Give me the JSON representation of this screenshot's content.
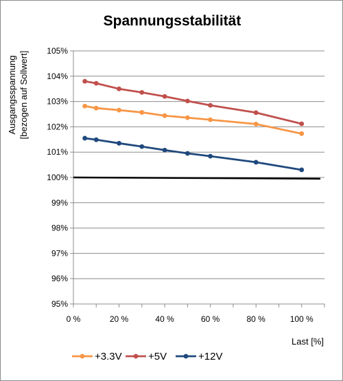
{
  "chart_data": {
    "type": "line",
    "title": "Spannungsstabilität",
    "ylabel_line1": "Ausgangsspannung",
    "ylabel_line2": "[bezogen auf Sollwert]",
    "xlabel": "Last [%]",
    "xlim": [
      0,
      110
    ],
    "ylim": [
      95,
      105
    ],
    "x_ticks": [
      0,
      20,
      40,
      60,
      80,
      100
    ],
    "x_tick_labels": [
      "0 %",
      "20 %",
      "40 %",
      "60 %",
      "80 %",
      "100 %"
    ],
    "y_ticks": [
      95,
      96,
      97,
      98,
      99,
      100,
      101,
      102,
      103,
      104,
      105
    ],
    "y_tick_labels": [
      "95%",
      "96%",
      "97%",
      "98%",
      "99%",
      "100%",
      "101%",
      "102%",
      "103%",
      "104%",
      "105%"
    ],
    "grid": "horizontal",
    "legend_position": "bottom",
    "reference_line": {
      "y_start": 100.0,
      "y_end": 99.95,
      "color": "#000000"
    },
    "series": [
      {
        "name": "+3.3V",
        "color": "#f79646",
        "x": [
          5,
          10,
          20,
          30,
          40,
          50,
          60,
          80,
          100
        ],
        "values": [
          102.82,
          102.74,
          102.66,
          102.57,
          102.44,
          102.36,
          102.28,
          102.11,
          101.73
        ]
      },
      {
        "name": "+5V",
        "color": "#c0504d",
        "x": [
          5,
          10,
          20,
          30,
          40,
          50,
          60,
          80,
          100
        ],
        "values": [
          103.8,
          103.72,
          103.5,
          103.36,
          103.2,
          103.02,
          102.85,
          102.56,
          102.12
        ]
      },
      {
        "name": "+12V",
        "color": "#1f497d",
        "x": [
          5,
          10,
          20,
          30,
          40,
          50,
          60,
          80,
          100
        ],
        "values": [
          101.55,
          101.49,
          101.35,
          101.22,
          101.08,
          100.95,
          100.84,
          100.6,
          100.3
        ]
      }
    ]
  }
}
